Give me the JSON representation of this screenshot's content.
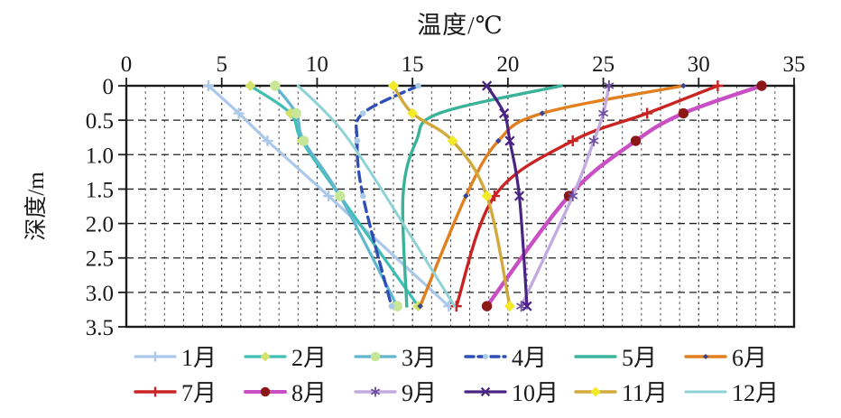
{
  "chart_data": {
    "type": "line",
    "title": "温度/℃",
    "xlabel": "温度/℃",
    "ylabel": "深度/m",
    "xlim": [
      0,
      35
    ],
    "ylim": [
      0,
      3.5
    ],
    "y_inverted": true,
    "x_tick_labels": [
      "0",
      "5",
      "10",
      "15",
      "20",
      "25",
      "30",
      "35"
    ],
    "x_ticks": [
      0,
      5,
      10,
      15,
      20,
      25,
      30,
      35
    ],
    "x_minor_grid_step": 1,
    "y_tick_labels": [
      "0",
      "0.5",
      "1.0",
      "1.5",
      "2.0",
      "2.5",
      "3.0",
      "3.5"
    ],
    "y_ticks": [
      0,
      0.5,
      1.0,
      1.5,
      2.0,
      2.5,
      3.0,
      3.5
    ],
    "grid": "dashed",
    "legend_position": "bottom",
    "depths_m": [
      0,
      0.4,
      0.8,
      1.6,
      3.2
    ],
    "series": [
      {
        "name": "1月",
        "color": "#aac8ea",
        "dash": "",
        "width": 3.2,
        "marker": "plus",
        "marker_color": "#aac8ea",
        "values": [
          4.3,
          5.9,
          7.4,
          10.6,
          16.9
        ]
      },
      {
        "name": "2月",
        "color": "#3fbfb4",
        "dash": "",
        "width": 3.2,
        "marker": "diamond",
        "marker_color": "#d2e26b",
        "values": [
          6.5,
          8.6,
          9.2,
          11.2,
          15.3
        ]
      },
      {
        "name": "3月",
        "color": "#5fb6cf",
        "dash": "",
        "width": 3.2,
        "marker": "circle",
        "marker_color": "#c7e697",
        "values": [
          7.8,
          8.9,
          9.3,
          11.2,
          14.2
        ]
      },
      {
        "name": "4月",
        "color": "#2e4fb5",
        "dash": "11 6",
        "width": 3.4,
        "marker": "circle-small",
        "marker_color": "#a9cbe8",
        "values": [
          15.3,
          12.4,
          12.1,
          12.4,
          13.9
        ]
      },
      {
        "name": "5月",
        "color": "#3bb39a",
        "dash": "",
        "width": 3.4,
        "marker": "none",
        "marker_color": "#3bb39a",
        "values": [
          22.8,
          16.4,
          15.2,
          14.5,
          14.7
        ]
      },
      {
        "name": "6月",
        "color": "#e2801f",
        "dash": "",
        "width": 3.4,
        "marker": "diamond-small",
        "marker_color": "#3a4491",
        "values": [
          29.2,
          21.8,
          19.5,
          17.8,
          15.4
        ]
      },
      {
        "name": "7月",
        "color": "#c92323",
        "dash": "",
        "width": 3.4,
        "marker": "plus",
        "marker_color": "#c92323",
        "values": [
          31.0,
          27.3,
          23.4,
          19.3,
          17.3
        ]
      },
      {
        "name": "8月",
        "color": "#c94fc4",
        "dash": "",
        "width": 4.4,
        "marker": "circle",
        "marker_color": "#8c1717",
        "values": [
          33.3,
          29.2,
          26.7,
          23.2,
          18.9
        ]
      },
      {
        "name": "9月",
        "color": "#c3abdf",
        "dash": "",
        "width": 3.4,
        "marker": "asterisk",
        "marker_color": "#6f4fa0",
        "values": [
          25.3,
          25.0,
          24.5,
          23.4,
          20.7
        ]
      },
      {
        "name": "10月",
        "color": "#4a2483",
        "dash": "",
        "width": 3.2,
        "marker": "x",
        "marker_color": "#4a2483",
        "values": [
          18.9,
          19.8,
          20.1,
          20.6,
          21.0
        ]
      },
      {
        "name": "11月",
        "color": "#d2a93d",
        "dash": "",
        "width": 3.4,
        "marker": "diamond",
        "marker_color": "#f2ea26",
        "values": [
          14.0,
          15.0,
          17.1,
          18.9,
          20.1
        ]
      },
      {
        "name": "12月",
        "color": "#8fd2d6",
        "dash": "",
        "width": 3.0,
        "marker": "none",
        "marker_color": "#8fd2d6",
        "values": [
          9.0,
          10.5,
          11.7,
          13.6,
          17.2
        ]
      }
    ]
  }
}
